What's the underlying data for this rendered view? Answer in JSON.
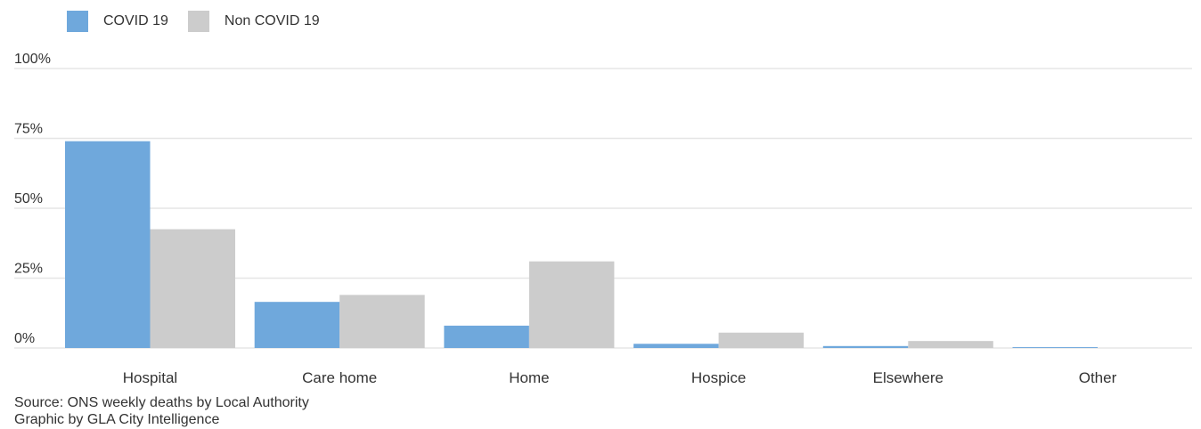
{
  "legend": {
    "covid_label": "COVID 19",
    "noncovid_label": "Non COVID 19"
  },
  "colors": {
    "covid": "#6fa8dc",
    "noncovid": "#cccccc",
    "grid": "#e6e6e6",
    "text": "#333333"
  },
  "source": {
    "line1": "Source: ONS weekly deaths by Local Authority",
    "line2": "Graphic by GLA City Intelligence"
  },
  "chart_data": {
    "type": "bar",
    "categories": [
      "Hospital",
      "Care home",
      "Home",
      "Hospice",
      "Elsewhere",
      "Other"
    ],
    "series": [
      {
        "name": "COVID 19",
        "values": [
          74,
          16.5,
          8,
          1.5,
          0.7,
          0.3
        ]
      },
      {
        "name": "Non COVID 19",
        "values": [
          42.5,
          19,
          31,
          5.5,
          2.5,
          0
        ]
      }
    ],
    "ylim": [
      0,
      100
    ],
    "yticks": [
      0,
      25,
      50,
      75,
      100
    ],
    "ytick_labels": [
      "0%",
      "25%",
      "50%",
      "75%",
      "100%"
    ],
    "grid": true,
    "legend_position": "top-left"
  }
}
